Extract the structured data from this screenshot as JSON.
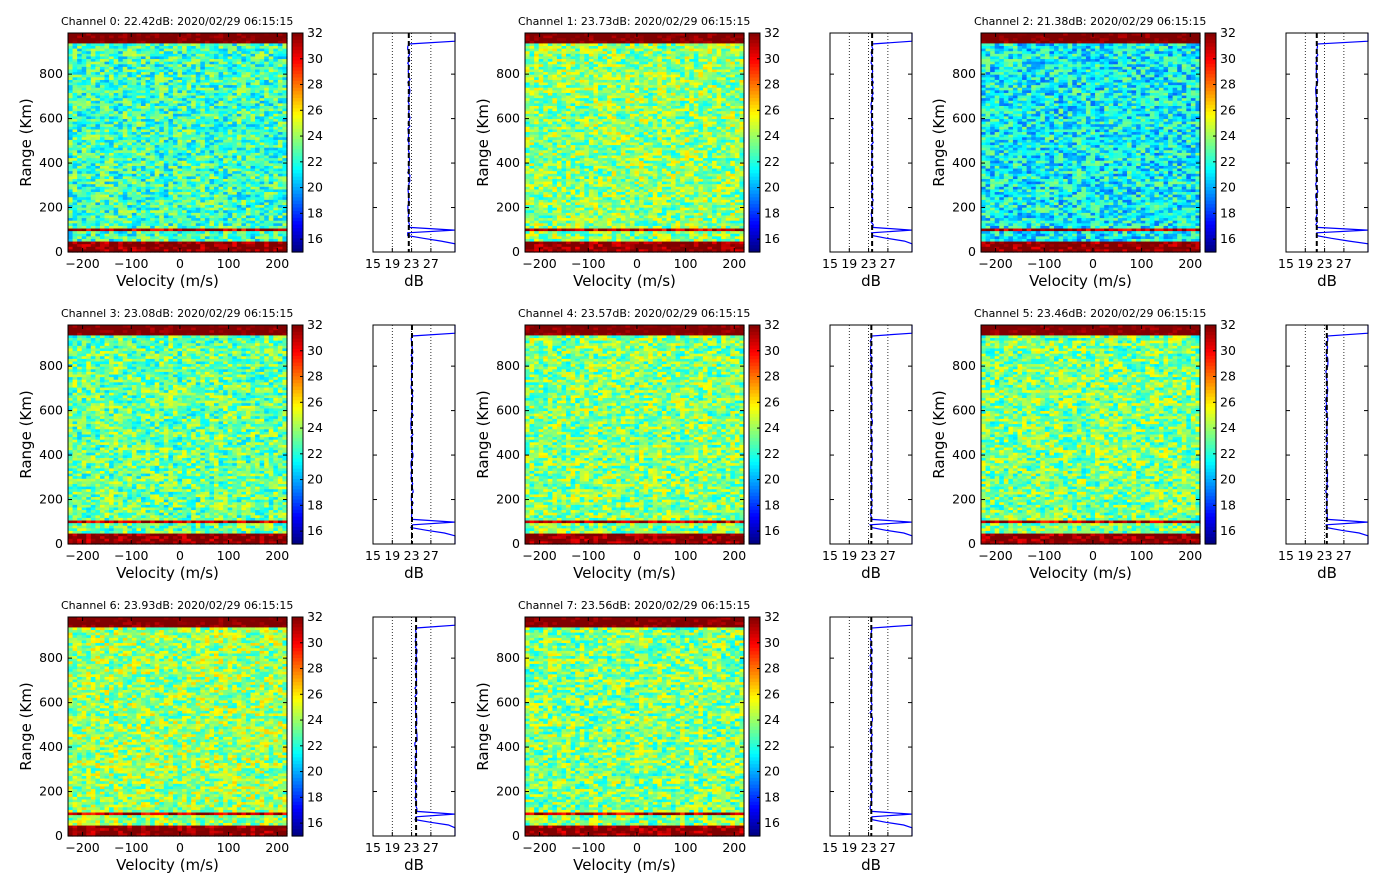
{
  "chart_data": {
    "type": "heatmap",
    "figure_layout": "3x3 grid of spectra panels with colorbar and RTI profile",
    "xlabel": "Velocity (m/s)",
    "ylabel": "Range (Km)",
    "xlim": [
      -230,
      220
    ],
    "ylim": [
      0,
      985
    ],
    "xticks": [
      -200,
      -100,
      0,
      100,
      200
    ],
    "yticks": [
      0,
      200,
      400,
      600,
      800
    ],
    "colorbar": {
      "vmin": 15,
      "vmax": 32,
      "colormap": "jet",
      "ticks": [
        16,
        18,
        20,
        22,
        24,
        26,
        28,
        30,
        32
      ]
    },
    "profile": {
      "xlabel": "dB",
      "xlim": [
        15,
        32
      ],
      "xticks": [
        15,
        19,
        23,
        27
      ],
      "dotted_lines": [
        19,
        23,
        27
      ]
    },
    "panels": [
      {
        "title": "Channel 0: 22.42dB: 2020/02/29 06:15:15",
        "channel": 0,
        "noise_db": 22.42
      },
      {
        "title": "Channel 1: 23.73dB: 2020/02/29 06:15:15",
        "channel": 1,
        "noise_db": 23.73
      },
      {
        "title": "Channel 2: 21.38dB: 2020/02/29 06:15:15",
        "channel": 2,
        "noise_db": 21.38
      },
      {
        "title": "Channel 3: 23.08dB: 2020/02/29 06:15:15",
        "channel": 3,
        "noise_db": 23.08
      },
      {
        "title": "Channel 4: 23.57dB: 2020/02/29 06:15:15",
        "channel": 4,
        "noise_db": 23.57
      },
      {
        "title": "Channel 5: 23.46dB: 2020/02/29 06:15:15",
        "channel": 5,
        "noise_db": 23.46
      },
      {
        "title": "Channel 6: 23.93dB: 2020/02/29 06:15:15",
        "channel": 6,
        "noise_db": 23.93
      },
      {
        "title": "Channel 7: 23.56dB: 2020/02/29 06:15:15",
        "channel": 7,
        "noise_db": 23.56
      }
    ]
  }
}
